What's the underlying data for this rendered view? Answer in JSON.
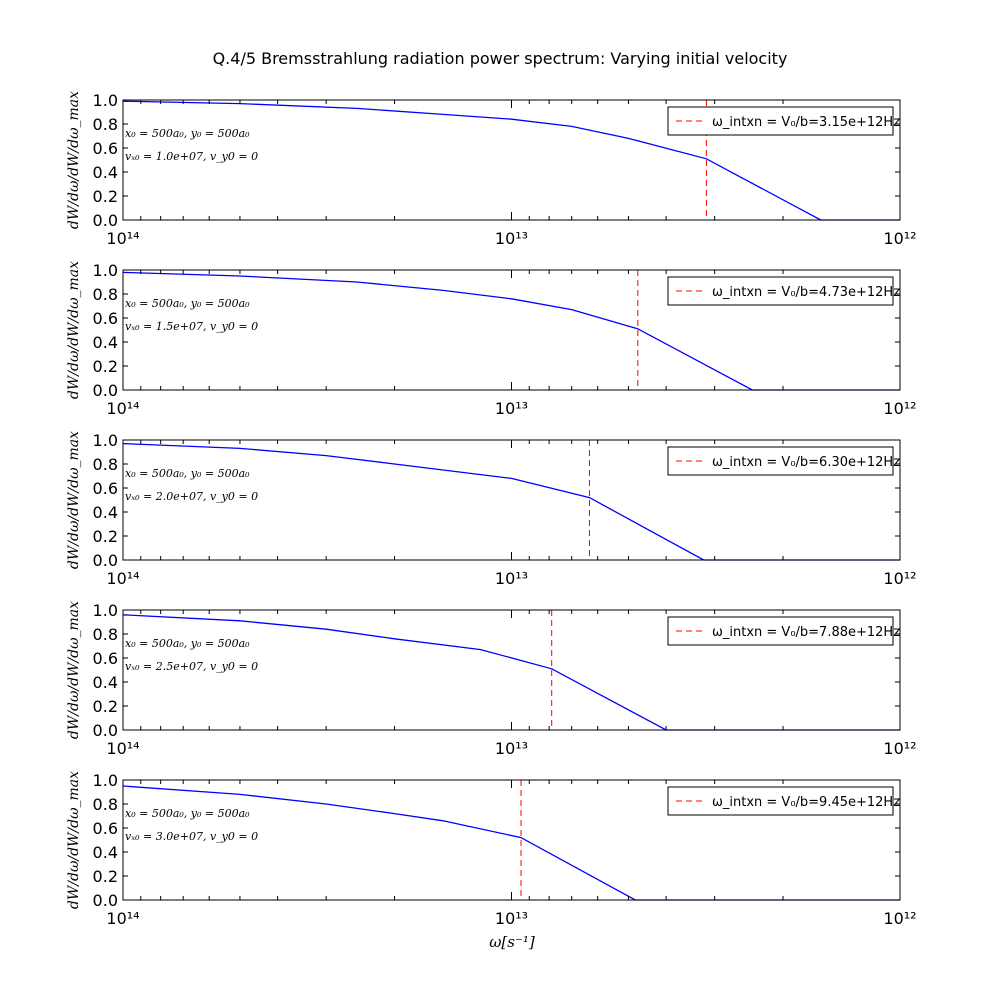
{
  "figure": {
    "title": "Q.4/5 Bremsstrahlung radiation power spectrum: Varying initial velocity",
    "xlabel": "ω[s⁻¹]"
  },
  "colors": {
    "curve": "#0000ff",
    "cutoff": "#ff0000",
    "axis": "#000000"
  },
  "chart_data": [
    {
      "type": "line",
      "ylabel": "dW/dω/dW/dω_max",
      "xscale": "log",
      "xlim": [
        100000000000000.0,
        1000000000000.0
      ],
      "ylim": [
        0,
        1.0
      ],
      "x_ticks": [
        "10¹⁴",
        "10¹³",
        "10¹²"
      ],
      "y_ticks": [
        "0.0",
        "0.2",
        "0.4",
        "0.6",
        "0.8",
        "1.0"
      ],
      "annotation_1": "x₀ = 500a₀, y₀ = 500a₀",
      "annotation_2": "vₓ₀ = 1.0e+07, v_y0 = 0",
      "legend": "ω_intxn = V₀/b=3.15e+12Hz",
      "legend_position": "upper right",
      "cutoff_x": 3150000000000.0,
      "series": [
        {
          "x": [
            100000000000000.0,
            50000000000000.0,
            25000000000000.0,
            15000000000000.0,
            10000000000000.0,
            7000000000000.0,
            5000000000000.0,
            3150000000000.0,
            1600000000000.0,
            1000000000000.0
          ],
          "y": [
            0.99,
            0.97,
            0.93,
            0.88,
            0.84,
            0.78,
            0.68,
            0.51,
            0.0,
            0.0
          ]
        }
      ]
    },
    {
      "type": "line",
      "ylabel": "dW/dω/dW/dω_max",
      "xscale": "log",
      "xlim": [
        100000000000000.0,
        1000000000000.0
      ],
      "ylim": [
        0,
        1.0
      ],
      "x_ticks": [
        "10¹⁴",
        "10¹³",
        "10¹²"
      ],
      "y_ticks": [
        "0.0",
        "0.2",
        "0.4",
        "0.6",
        "0.8",
        "1.0"
      ],
      "annotation_1": "x₀ = 500a₀, y₀ = 500a₀",
      "annotation_2": "vₓ₀ = 1.5e+07, v_y0 = 0",
      "legend": "ω_intxn = V₀/b=4.73e+12Hz",
      "legend_position": "upper right",
      "cutoff_x": 4730000000000.0,
      "series": [
        {
          "x": [
            100000000000000.0,
            50000000000000.0,
            25000000000000.0,
            15000000000000.0,
            10000000000000.0,
            7000000000000.0,
            4730000000000.0,
            2400000000000.0,
            1000000000000.0
          ],
          "y": [
            0.98,
            0.95,
            0.9,
            0.83,
            0.76,
            0.67,
            0.51,
            0.0,
            0.0
          ]
        }
      ]
    },
    {
      "type": "line",
      "ylabel": "dW/dω/dW/dω_max",
      "xscale": "log",
      "xlim": [
        100000000000000.0,
        1000000000000.0
      ],
      "ylim": [
        0,
        1.0
      ],
      "x_ticks": [
        "10¹⁴",
        "10¹³",
        "10¹²"
      ],
      "y_ticks": [
        "0.0",
        "0.2",
        "0.4",
        "0.6",
        "0.8",
        "1.0"
      ],
      "annotation_1": "x₀ = 500a₀, y₀ = 500a₀",
      "annotation_2": "vₓ₀ = 2.0e+07, v_y0 = 0",
      "legend": "ω_intxn = V₀/b=6.30e+12Hz",
      "legend_position": "upper right",
      "cutoff_x": 6300000000000.0,
      "series": [
        {
          "x": [
            100000000000000.0,
            50000000000000.0,
            30000000000000.0,
            20000000000000.0,
            15000000000000.0,
            10000000000000.0,
            6300000000000.0,
            3200000000000.0,
            1000000000000.0
          ],
          "y": [
            0.97,
            0.93,
            0.87,
            0.8,
            0.75,
            0.68,
            0.52,
            0.0,
            0.0
          ]
        }
      ]
    },
    {
      "type": "line",
      "ylabel": "dW/dω/dW/dω_max",
      "xscale": "log",
      "xlim": [
        100000000000000.0,
        1000000000000.0
      ],
      "ylim": [
        0,
        1.0
      ],
      "x_ticks": [
        "10¹⁴",
        "10¹³",
        "10¹²"
      ],
      "y_ticks": [
        "0.0",
        "0.2",
        "0.4",
        "0.6",
        "0.8",
        "1.0"
      ],
      "annotation_1": "x₀ = 500a₀, y₀ = 500a₀",
      "annotation_2": "vₓ₀ = 2.5e+07, v_y0 = 0",
      "legend": "ω_intxn = V₀/b=7.88e+12Hz",
      "legend_position": "upper right",
      "cutoff_x": 7880000000000.0,
      "series": [
        {
          "x": [
            100000000000000.0,
            50000000000000.0,
            30000000000000.0,
            20000000000000.0,
            12000000000000.0,
            7880000000000.0,
            4000000000000.0,
            1000000000000.0
          ],
          "y": [
            0.96,
            0.91,
            0.84,
            0.76,
            0.67,
            0.51,
            0.0,
            0.0
          ]
        }
      ]
    },
    {
      "type": "line",
      "ylabel": "dW/dω/dW/dω_max",
      "xscale": "log",
      "xlim": [
        100000000000000.0,
        1000000000000.0
      ],
      "ylim": [
        0,
        1.0
      ],
      "x_ticks": [
        "10¹⁴",
        "10¹³",
        "10¹²"
      ],
      "y_ticks": [
        "0.0",
        "0.2",
        "0.4",
        "0.6",
        "0.8",
        "1.0"
      ],
      "annotation_1": "x₀ = 500a₀, y₀ = 500a₀",
      "annotation_2": "vₓ₀ = 3.0e+07, v_y0 = 0",
      "legend": "ω_intxn = V₀/b=9.45e+12Hz",
      "legend_position": "upper right",
      "cutoff_x": 9450000000000.0,
      "series": [
        {
          "x": [
            100000000000000.0,
            50000000000000.0,
            30000000000000.0,
            20000000000000.0,
            15000000000000.0,
            9450000000000.0,
            4800000000000.0,
            1000000000000.0
          ],
          "y": [
            0.95,
            0.88,
            0.8,
            0.72,
            0.66,
            0.52,
            0.0,
            0.0
          ]
        }
      ]
    }
  ]
}
